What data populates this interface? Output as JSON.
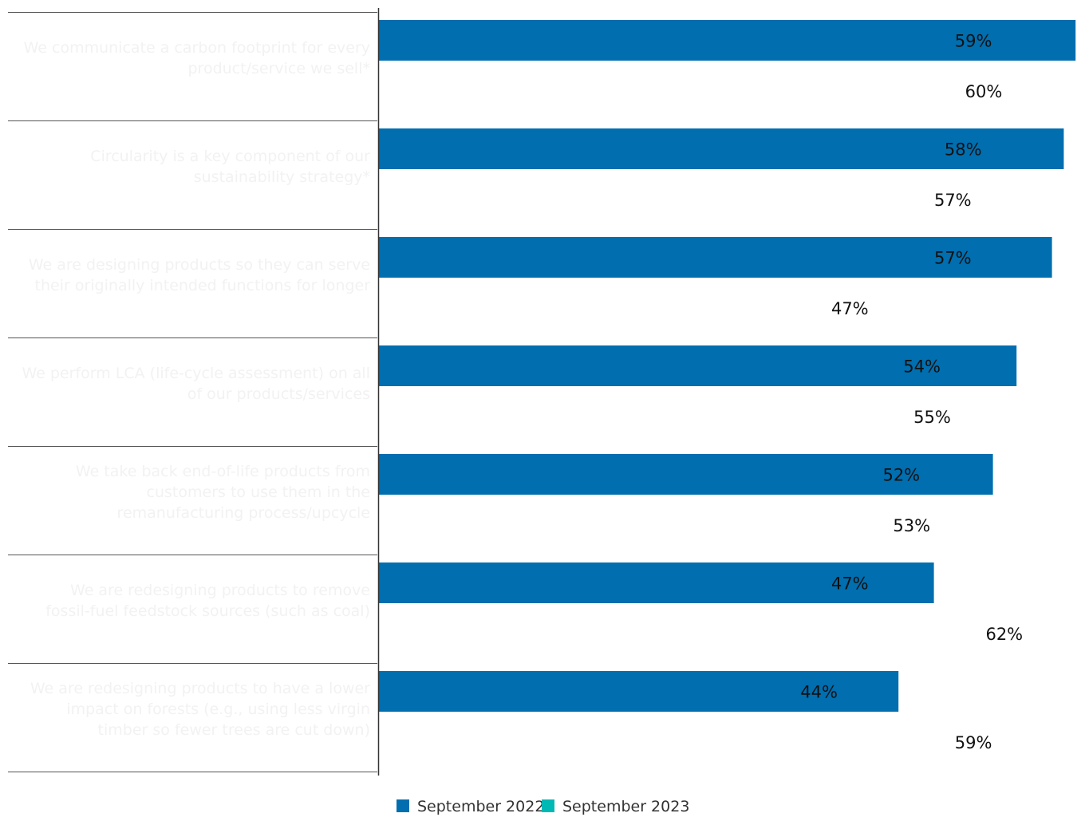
{
  "chart_data": {
    "type": "bar",
    "orientation": "horizontal",
    "categories": [
      [
        "We communicate a carbon footprint for every",
        "product/service we sell*"
      ],
      [
        "Circularity is a key component of our",
        "sustainability strategy*"
      ],
      [
        "We are designing products so they can serve",
        "their originally intended functions for longer"
      ],
      [
        "We perform LCA (life-cycle assessment) on all",
        "of our products/services"
      ],
      [
        "We take back end-of-life products from",
        "customers to use them in the",
        "remanufacturing process/upcycle"
      ],
      [
        "We are redesigning products to remove",
        "fossil-fuel feedstock sources (such as coal)"
      ],
      [
        "We are redesigning products to have a lower",
        "impact on forests (e.g., using less virgin",
        "timber so fewer trees are cut down)"
      ]
    ],
    "series": [
      {
        "name": "September 2022",
        "color": "#006eaf",
        "values": [
          59,
          58,
          57,
          54,
          52,
          47,
          44
        ],
        "labels": [
          "59%",
          "58%",
          "57%",
          "54%",
          "52%",
          "47%",
          "44%"
        ]
      },
      {
        "name": "September 2023",
        "color": "#00b8b4",
        "values": [
          60,
          57,
          47,
          55,
          53,
          62,
          59
        ],
        "labels": [
          "60%",
          "57%",
          "47%",
          "55%",
          "53%",
          "62%",
          "59%"
        ]
      }
    ],
    "xlim": [
      0,
      100
    ],
    "title": "",
    "xlabel": "",
    "ylabel": "",
    "grid": false,
    "legend": "bottom-center"
  }
}
